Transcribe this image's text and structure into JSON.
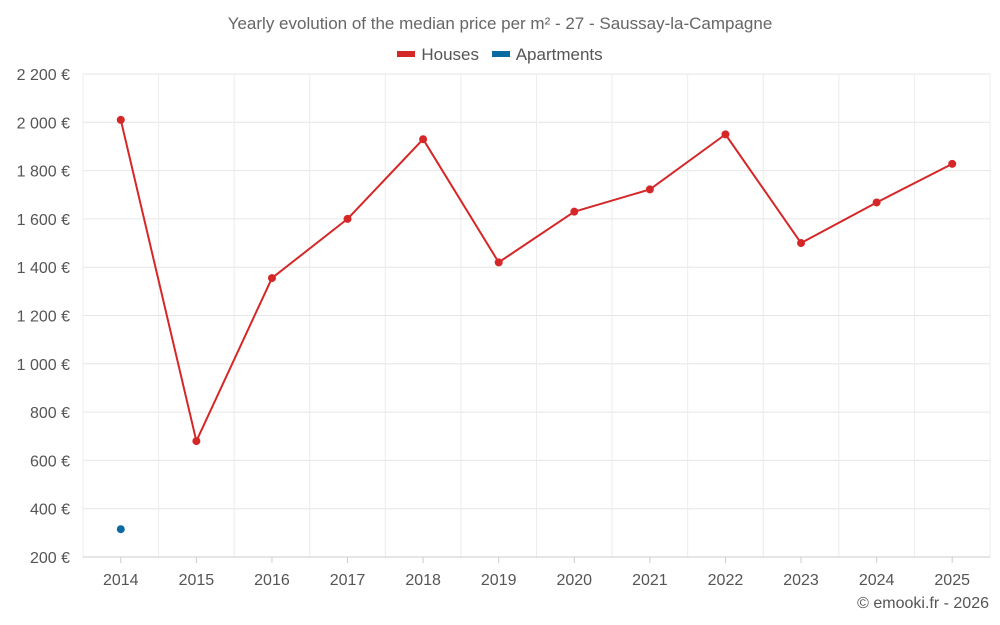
{
  "chart_data": {
    "type": "line",
    "title": "Yearly evolution of the median price per m² - 27 - Saussay-la-Campagne",
    "xlabel": "",
    "ylabel": "",
    "categories": [
      "2014",
      "2015",
      "2016",
      "2017",
      "2018",
      "2019",
      "2020",
      "2021",
      "2022",
      "2023",
      "2024",
      "2025"
    ],
    "ylim": [
      200,
      2200
    ],
    "yticks": [
      200,
      400,
      600,
      800,
      1000,
      1200,
      1400,
      1600,
      1800,
      2000,
      2200
    ],
    "ytick_labels": [
      "200 €",
      "400 €",
      "600 €",
      "800 €",
      "1 000 €",
      "1 200 €",
      "1 400 €",
      "1 600 €",
      "1 800 €",
      "2 000 €",
      "2 200 €"
    ],
    "grid": true,
    "legend_position": "top-center",
    "series": [
      {
        "name": "Houses",
        "color": "#d62728",
        "values": [
          2010,
          680,
          1355,
          1600,
          1930,
          1420,
          1630,
          1722,
          1950,
          1500,
          1668,
          1828
        ]
      },
      {
        "name": "Apartments",
        "color": "#0b6aa0",
        "values": [
          315,
          null,
          null,
          null,
          null,
          null,
          null,
          null,
          null,
          null,
          null,
          null
        ]
      }
    ]
  },
  "footer": {
    "copyright": "© emooki.fr - 2026"
  }
}
